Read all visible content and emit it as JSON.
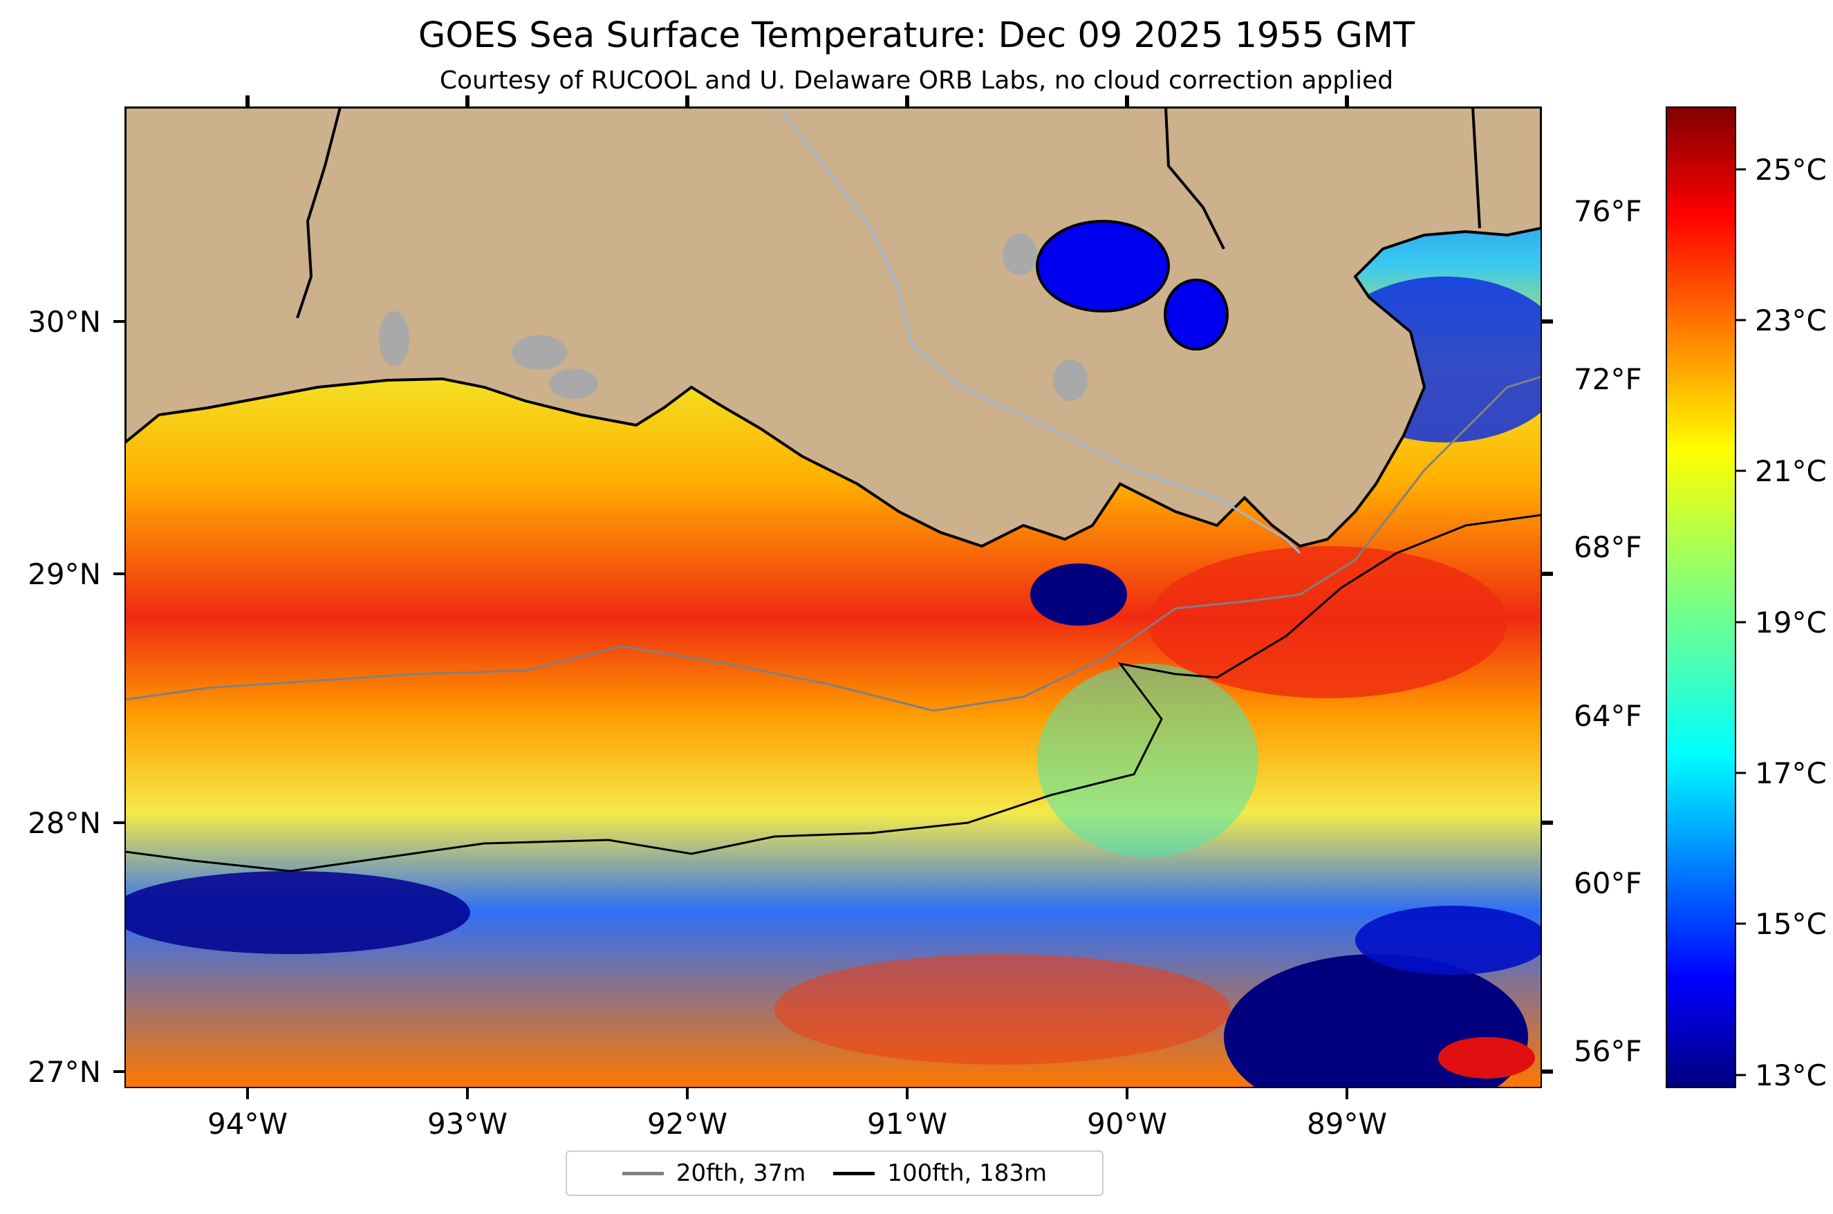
{
  "title": "GOES Sea Surface Temperature: Dec 09 2025 1955 GMT",
  "subtitle": "Courtesy of RUCOOL and U. Delaware ORB Labs, no cloud correction applied",
  "map": {
    "lon_labels": [
      "94°W",
      "93°W",
      "92°W",
      "91°W",
      "90°W",
      "89°W"
    ],
    "lat_labels": [
      "30°N",
      "29°N",
      "28°N",
      "27°N"
    ],
    "land_color": "#cdb18c",
    "coast_color": "#000000",
    "river_color": "#9db8d8",
    "lake_color": "#a9a9a9",
    "isobath_20_color": "#808080",
    "isobath_100_color": "#000000"
  },
  "fahrenheit_labels": [
    "76°F",
    "72°F",
    "68°F",
    "64°F",
    "60°F",
    "56°F"
  ],
  "colorbar": {
    "celsius_labels": [
      "25°C",
      "23°C",
      "21°C",
      "19°C",
      "17°C",
      "15°C",
      "13°C"
    ],
    "colormap": "jet",
    "range_c": [
      12.8,
      26.0
    ]
  },
  "legend": {
    "items": [
      {
        "label": "20fth, 37m",
        "color": "#808080"
      },
      {
        "label": "100fth, 183m",
        "color": "#000000"
      }
    ]
  }
}
